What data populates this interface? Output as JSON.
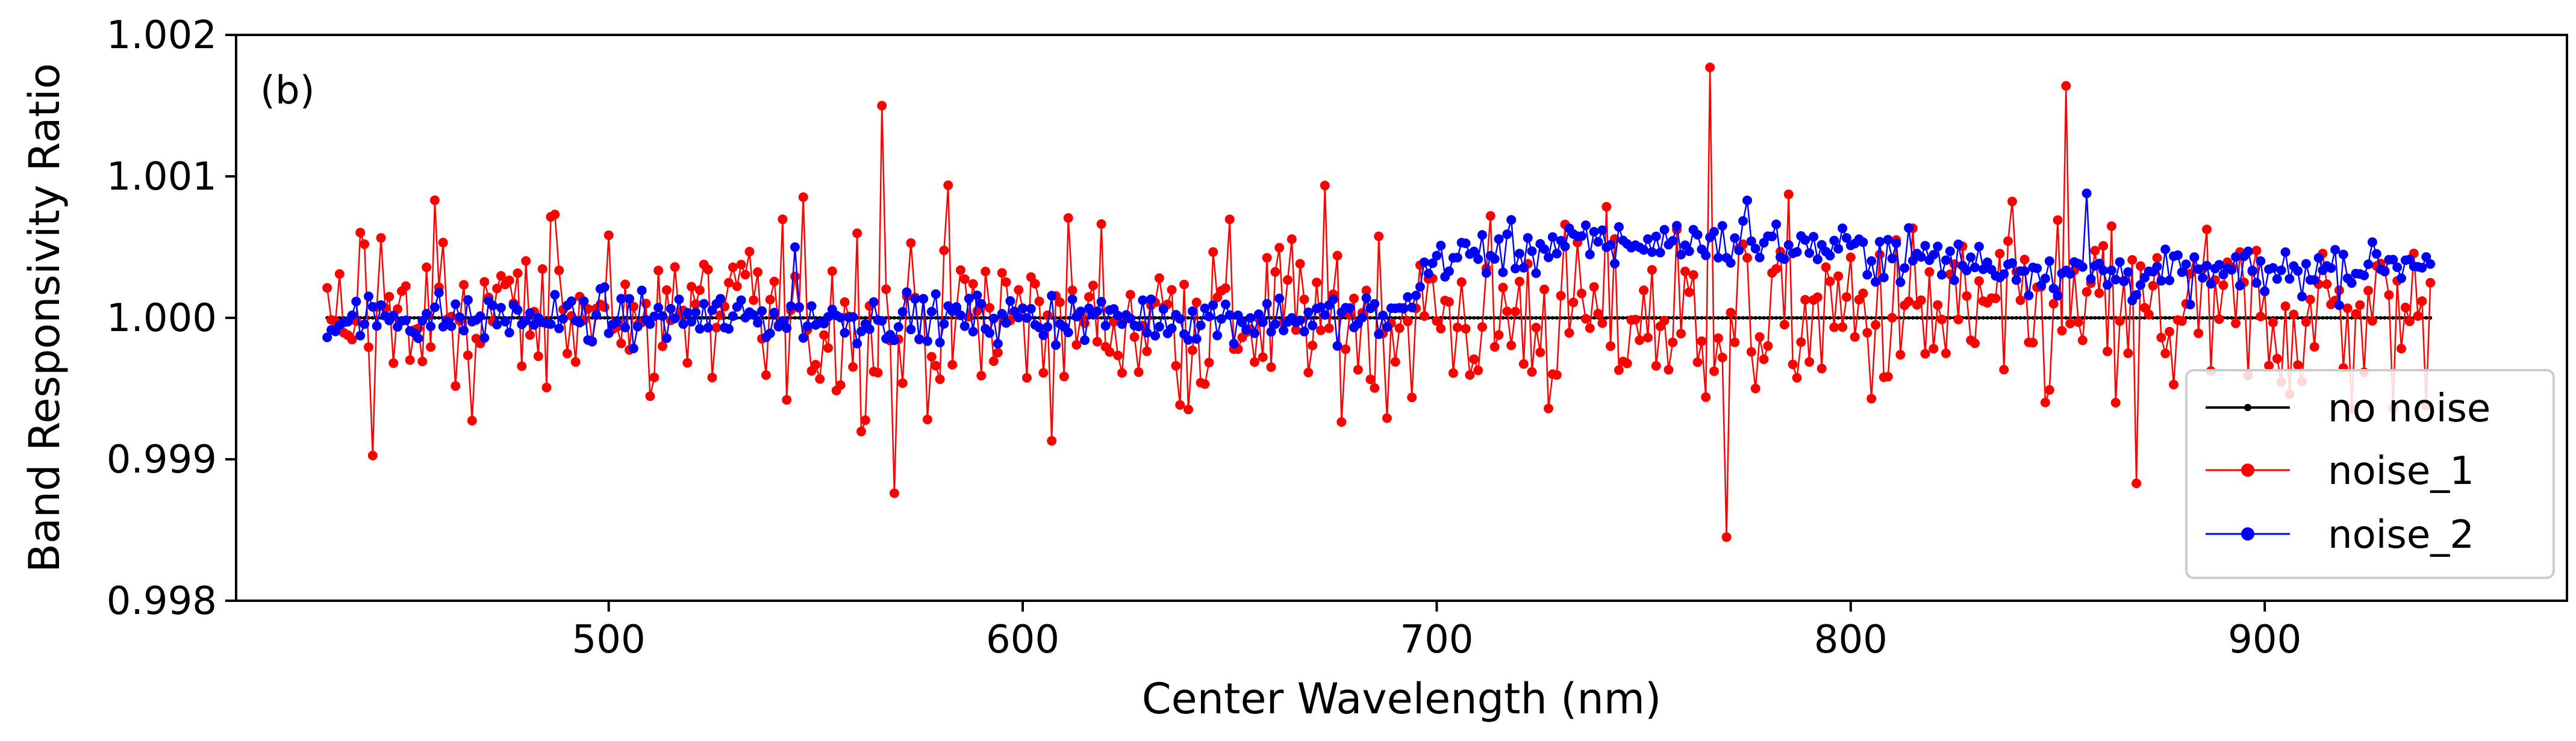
{
  "chart_data": {
    "type": "line",
    "panel_label": "(b)",
    "title": "",
    "xlabel": "Center Wavelength (nm)",
    "ylabel": "Band Responsivity Ratio",
    "xlim": [
      410,
      973
    ],
    "ylim": [
      0.998,
      1.002
    ],
    "xticks": [
      500,
      600,
      700,
      800,
      900
    ],
    "xtick_labels": [
      "500",
      "600",
      "700",
      "800",
      "900"
    ],
    "yticks": [
      0.998,
      0.999,
      1.0,
      1.001,
      1.002
    ],
    "ytick_labels": [
      "0.998",
      "0.999",
      "1.000",
      "1.001",
      "1.002"
    ],
    "grid": false,
    "legend_position": "lower-right",
    "series": [
      {
        "name": "no noise",
        "color": "#000000",
        "marker": "small-dot",
        "x_range": [
          432,
          940
        ],
        "n_points": 509,
        "values_summary": "constant 1.000 across all bands"
      },
      {
        "name": "noise_1",
        "color": "#ff0000",
        "marker": "dot",
        "x_range": [
          432,
          940
        ],
        "n_points": 509,
        "values_summary": "scatter around 1.000, approx. range 0.99885 to 1.00175",
        "highlighted_points": [
          {
            "x": 566,
            "y": 1.0015
          },
          {
            "x": 569,
            "y": 0.99876
          },
          {
            "x": 766,
            "y": 1.00177
          },
          {
            "x": 770,
            "y": 0.99845
          },
          {
            "x": 852,
            "y": 1.00164
          },
          {
            "x": 869,
            "y": 0.99883
          }
        ]
      },
      {
        "name": "noise_2",
        "color": "#0000ff",
        "marker": "dot",
        "x_range": [
          432,
          940
        ],
        "n_points": 509,
        "values_summary": "near 1.000 below ~690 nm, offset to ~1.0004 to 1.0008 above 700 nm",
        "highlighted_points": [
          {
            "x": 545,
            "y": 1.0005
          },
          {
            "x": 775,
            "y": 1.00083
          },
          {
            "x": 857,
            "y": 1.00088
          }
        ]
      }
    ]
  }
}
